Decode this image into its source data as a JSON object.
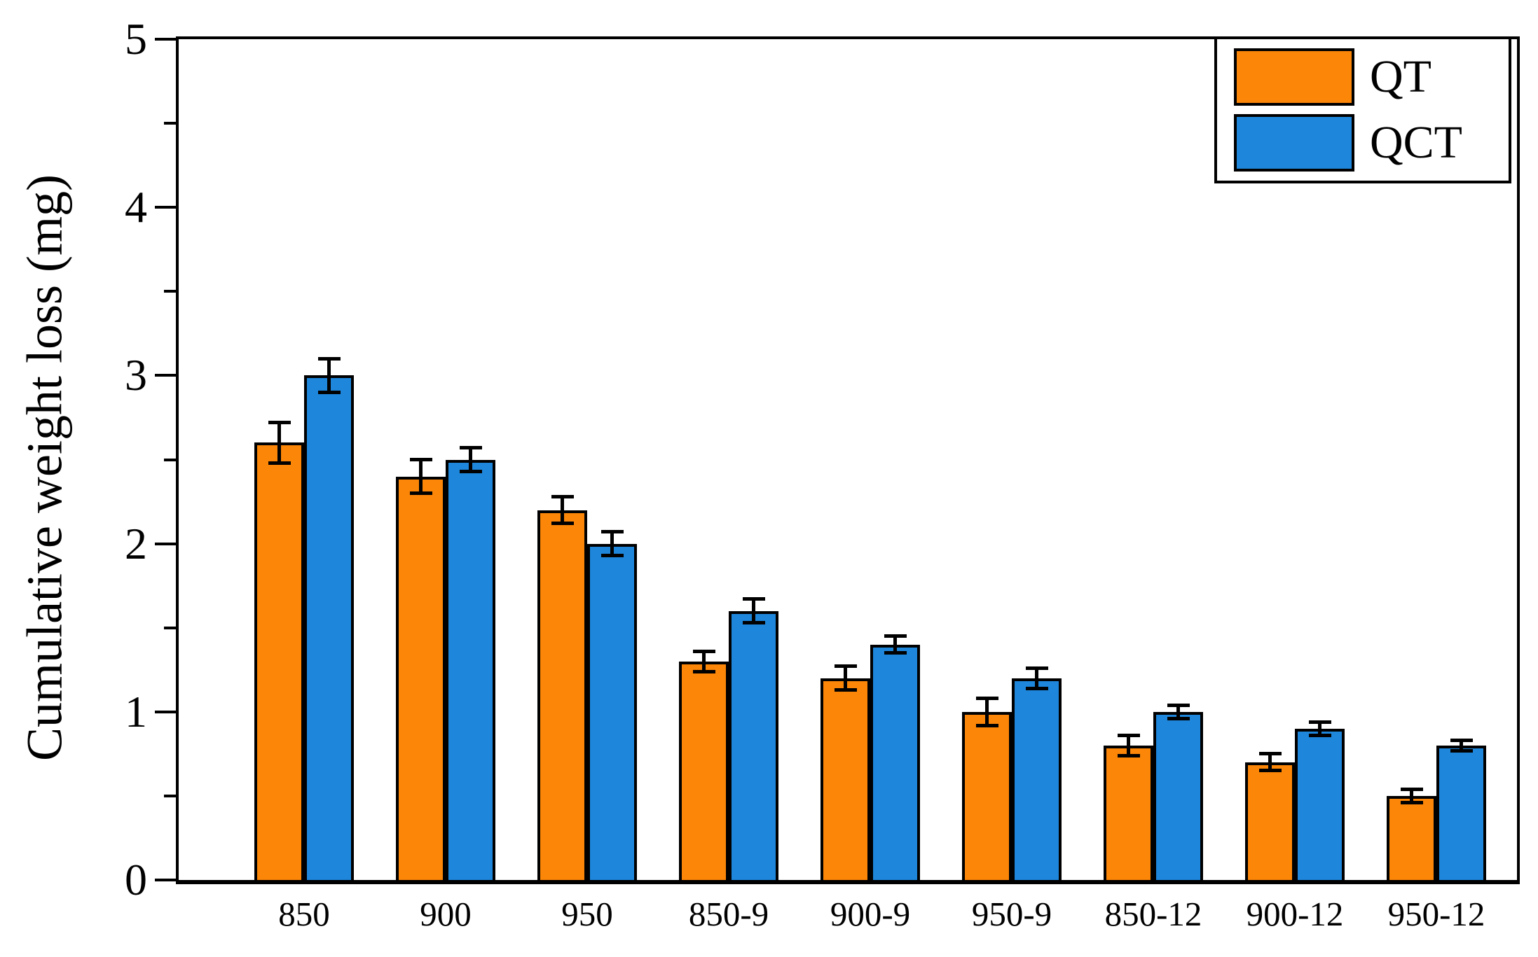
{
  "chart_data": {
    "type": "bar",
    "title": "",
    "ylabel": "Cumulative weight loss (mg)",
    "xlabel": "",
    "ylim": [
      0,
      5
    ],
    "y_major_tick_step": 1,
    "y_minor_tick_step": 0.5,
    "y_tick_labels": [
      "0",
      "1",
      "2",
      "3",
      "4",
      "5"
    ],
    "grid": false,
    "legend_position": "top-right",
    "categories": [
      "850",
      "900",
      "950",
      "850-9",
      "900-9",
      "950-9",
      "850-12",
      "900-12",
      "950-12"
    ],
    "series": [
      {
        "name": "QT",
        "color": "#FC8608",
        "edge_color": "#000000",
        "values": [
          2.6,
          2.4,
          2.2,
          1.3,
          1.2,
          1.0,
          0.8,
          0.7,
          0.5
        ],
        "errors": [
          0.12,
          0.1,
          0.08,
          0.06,
          0.07,
          0.08,
          0.06,
          0.05,
          0.04
        ]
      },
      {
        "name": "QCT",
        "color": "#1E87DC",
        "edge_color": "#000000",
        "values": [
          3.0,
          2.5,
          2.0,
          1.6,
          1.4,
          1.2,
          1.0,
          0.9,
          0.8
        ],
        "errors": [
          0.1,
          0.07,
          0.07,
          0.07,
          0.05,
          0.06,
          0.04,
          0.04,
          0.03
        ]
      }
    ]
  }
}
